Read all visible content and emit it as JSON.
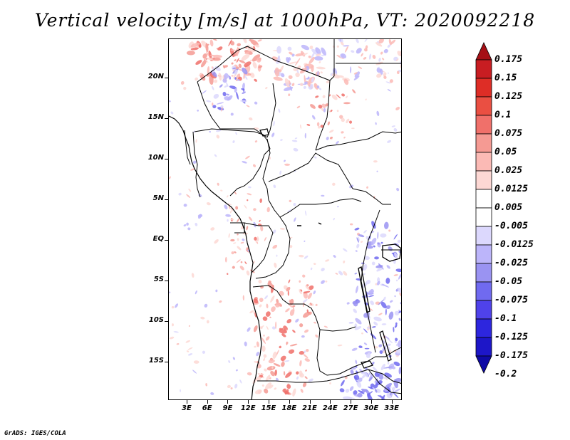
{
  "title": "Vertical velocity [m/s] at 1000hPa, VT: 2020092218",
  "credit": "GrADS: IGES/COLA",
  "lat_labels": [
    {
      "text": "20N",
      "value": 20
    },
    {
      "text": "15N",
      "value": 15
    },
    {
      "text": "10N",
      "value": 10
    },
    {
      "text": "5N",
      "value": 5
    },
    {
      "text": "EQ",
      "value": 0
    },
    {
      "text": "5S",
      "value": -5
    },
    {
      "text": "10S",
      "value": -10
    },
    {
      "text": "15S",
      "value": -15
    }
  ],
  "lon_labels": [
    {
      "text": "3E",
      "value": 3
    },
    {
      "text": "6E",
      "value": 6
    },
    {
      "text": "9E",
      "value": 9
    },
    {
      "text": "12E",
      "value": 12
    },
    {
      "text": "15E",
      "value": 15
    },
    {
      "text": "18E",
      "value": 18
    },
    {
      "text": "21E",
      "value": 21
    },
    {
      "text": "24E",
      "value": 24
    },
    {
      "text": "27E",
      "value": 27
    },
    {
      "text": "30E",
      "value": 30
    },
    {
      "text": "33E",
      "value": 33
    }
  ],
  "map_extent": {
    "lon_min": 0.3,
    "lon_max": 34.5,
    "lat_min": -19.7,
    "lat_max": 24.8
  },
  "colorbar": {
    "levels": [
      "0.175",
      "0.15",
      "0.125",
      "0.1",
      "0.075",
      "0.05",
      "0.025",
      "0.0125",
      "0.005",
      "-0.005",
      "-0.0125",
      "-0.025",
      "-0.05",
      "-0.075",
      "-0.1",
      "-0.125",
      "-0.175",
      "-0.2"
    ],
    "colors": [
      "#a50f15",
      "#c81d22",
      "#de2d26",
      "#ea4f42",
      "#f0706a",
      "#f59a93",
      "#fbbab5",
      "#fdd8d4",
      "#ffffff",
      "#ffffff",
      "#dcd8fd",
      "#bcb5fa",
      "#9a93f2",
      "#706af0",
      "#4f42ea",
      "#2d26de",
      "#1d16c8",
      "#0f0aa5"
    ]
  }
}
